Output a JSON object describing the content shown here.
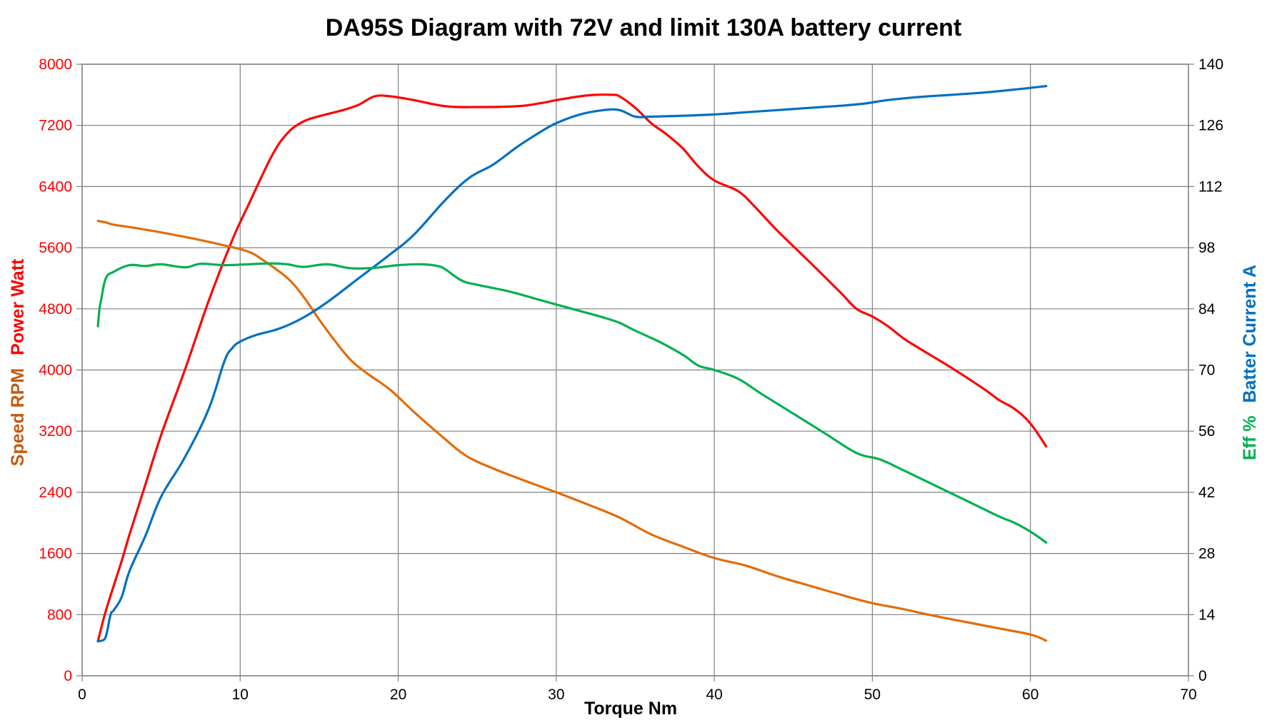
{
  "chart_data": {
    "type": "line",
    "title": "DA95S  Diagram with  72V and limit 130A battery current",
    "xlabel": "Torque Nm",
    "xlim": [
      0,
      70
    ],
    "x_ticks": [
      0,
      10,
      20,
      30,
      40,
      50,
      60,
      70
    ],
    "left_axis": {
      "labels": [
        {
          "text": "Speed RPM",
          "color": "#c55a11"
        },
        {
          "text": "Power Watt",
          "color": "#ff0000"
        }
      ],
      "ylim": [
        0,
        8000
      ],
      "ticks": [
        0,
        800,
        1600,
        2400,
        3200,
        4000,
        4800,
        5600,
        6400,
        7200,
        8000
      ],
      "tick_color": "#ff0000"
    },
    "right_axis": {
      "labels": [
        {
          "text": "Eff %",
          "color": "#00b050"
        },
        {
          "text": "Batter Current A",
          "color": "#0070c0"
        }
      ],
      "ylim": [
        0,
        140
      ],
      "ticks": [
        0,
        14,
        28,
        42,
        56,
        70,
        84,
        98,
        112,
        126,
        140
      ],
      "tick_color": "#000000"
    },
    "grid": true,
    "legend": "none",
    "series": [
      {
        "axis": "left",
        "color": "#ff0000",
        "x": [
          1.0,
          1.5,
          2.5,
          3.0,
          4.0,
          5.0,
          6.5,
          8.0,
          9.5,
          10.5,
          12.0,
          13.0,
          14.0,
          15.0,
          16.5,
          17.5,
          18.5,
          19.5,
          21.0,
          23.0,
          25.0,
          27.5,
          29.0,
          30.0,
          31.5,
          32.5,
          33.5,
          34.0,
          35.0,
          36.0,
          37.0,
          38.0,
          39.0,
          40.0,
          41.5,
          42.5,
          44.0,
          46.0,
          48.0,
          49.0,
          50.0,
          51.0,
          52.0,
          53.0,
          55.0,
          57.0,
          58.0,
          59.0,
          60.0,
          61.0
        ],
        "y": [
          450,
          850,
          1500,
          1850,
          2500,
          3150,
          4000,
          4900,
          5700,
          6150,
          6800,
          7100,
          7250,
          7320,
          7400,
          7470,
          7580,
          7580,
          7530,
          7450,
          7440,
          7450,
          7490,
          7530,
          7580,
          7600,
          7600,
          7580,
          7430,
          7230,
          7080,
          6900,
          6660,
          6480,
          6340,
          6150,
          5820,
          5420,
          5010,
          4800,
          4700,
          4570,
          4410,
          4280,
          4030,
          3760,
          3610,
          3490,
          3300,
          3000
        ]
      },
      {
        "axis": "left",
        "color": "#e36c09",
        "x": [
          1.0,
          1.5,
          2.0,
          3.0,
          5.0,
          7.0,
          9.0,
          10.5,
          11.5,
          13.0,
          14.0,
          15.0,
          16.0,
          17.0,
          18.0,
          19.5,
          21.0,
          23.0,
          24.0,
          25.0,
          27.0,
          30.0,
          32.0,
          34.0,
          36.0,
          38.0,
          40.0,
          42.0,
          44.0,
          46.0,
          48.0,
          50.0,
          52.0,
          54.0,
          56.0,
          58.0,
          60.0,
          61.0
        ],
        "y": [
          5950,
          5930,
          5900,
          5870,
          5800,
          5720,
          5630,
          5550,
          5430,
          5200,
          4960,
          4660,
          4380,
          4130,
          3960,
          3740,
          3450,
          3090,
          2920,
          2800,
          2630,
          2400,
          2240,
          2070,
          1850,
          1690,
          1540,
          1440,
          1300,
          1180,
          1060,
          950,
          870,
          780,
          700,
          620,
          540,
          460
        ]
      },
      {
        "axis": "right",
        "color": "#0070c0",
        "x": [
          1.0,
          1.2,
          1.5,
          1.8,
          2.0,
          2.5,
          3.0,
          4.0,
          5.0,
          6.5,
          8.0,
          9.0,
          9.5,
          10.0,
          11.0,
          12.5,
          14.0,
          15.5,
          17.5,
          19.5,
          21.0,
          23.0,
          24.5,
          26.0,
          27.5,
          29.0,
          30.0,
          31.5,
          33.0,
          34.0,
          35.0,
          36.0,
          38.0,
          40.0,
          42.0,
          44.0,
          46.0,
          48.0,
          49.5,
          51.0,
          53.0,
          55.0,
          57.0,
          59.0,
          61.0
        ],
        "y": [
          8,
          8,
          9,
          14,
          15,
          18,
          24,
          32,
          41,
          50,
          61,
          72,
          75,
          76.5,
          78,
          79.5,
          82,
          85.5,
          91,
          96.5,
          101,
          109,
          114,
          117,
          121,
          124.5,
          126.5,
          128.5,
          129.5,
          129.5,
          128,
          128,
          128.2,
          128.5,
          129,
          129.5,
          130,
          130.5,
          131,
          131.8,
          132.5,
          133,
          133.5,
          134.2,
          135
        ]
      },
      {
        "axis": "right",
        "color": "#00b050",
        "x": [
          1.0,
          1.1,
          1.2,
          1.5,
          2.0,
          3.0,
          4.0,
          5.0,
          6.5,
          7.5,
          9.0,
          10.5,
          12.0,
          13.0,
          14.0,
          15.5,
          17.0,
          18.5,
          20.0,
          21.5,
          22.5,
          23.0,
          24.0,
          25.0,
          27.0,
          29.0,
          31.0,
          33.0,
          34.0,
          35.0,
          36.5,
          38.0,
          39.0,
          40.0,
          41.5,
          43.0,
          45.0,
          47.0,
          49.0,
          50.5,
          52.0,
          54.0,
          56.0,
          58.0,
          59.0,
          60.0,
          61.0
        ],
        "y": [
          80,
          84,
          86,
          91,
          92.5,
          94,
          93.8,
          94.2,
          93.5,
          94.3,
          94,
          94.2,
          94.4,
          94.2,
          93.6,
          94.2,
          93.3,
          93.4,
          94,
          94.2,
          93.8,
          93,
          90.5,
          89.5,
          88,
          86,
          84,
          82,
          80.8,
          79,
          76.5,
          73.5,
          71,
          70,
          68,
          64.5,
          60,
          55.5,
          51,
          49.5,
          47,
          43.5,
          40,
          36.5,
          35,
          33,
          30.5
        ]
      }
    ]
  }
}
